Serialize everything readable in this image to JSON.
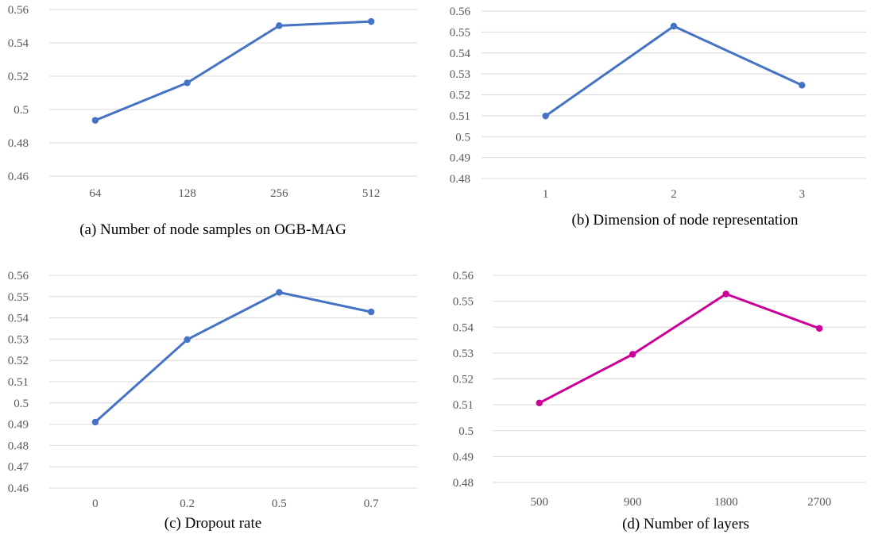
{
  "chart_data": [
    {
      "type": "line",
      "title": "(a) Number of node samples on OGB-MAG",
      "categories": [
        "64",
        "128",
        "256",
        "512"
      ],
      "series": [
        {
          "name": "",
          "values": [
            0.4935,
            0.516,
            0.5503,
            0.5528
          ]
        }
      ],
      "yticks": [
        "0.46",
        "0.48",
        "0.5",
        "0.52",
        "0.54",
        "0.56"
      ],
      "ylim": [
        0.46,
        0.56
      ],
      "xlabel": "",
      "ylabel": "",
      "color": "#4472c4"
    },
    {
      "type": "line",
      "title": "(b) Dimension of node representation",
      "categories": [
        "1",
        "2",
        "3"
      ],
      "series": [
        {
          "name": "",
          "values": [
            0.5099,
            0.5528,
            0.5246
          ]
        }
      ],
      "yticks": [
        "0.48",
        "0.49",
        "0.5",
        "0.51",
        "0.52",
        "0.53",
        "0.54",
        "0.55",
        "0.56"
      ],
      "ylim": [
        0.48,
        0.56
      ],
      "xlabel": "",
      "ylabel": "",
      "color": "#4472c4"
    },
    {
      "type": "line",
      "title": "(c) Dropout rate",
      "categories": [
        "0",
        "0.2",
        "0.5",
        "0.7"
      ],
      "series": [
        {
          "name": "",
          "values": [
            0.491,
            0.5298,
            0.552,
            0.5428
          ]
        }
      ],
      "yticks": [
        "0.46",
        "0.47",
        "0.48",
        "0.49",
        "0.5",
        "0.51",
        "0.52",
        "0.53",
        "0.54",
        "0.55",
        "0.56"
      ],
      "ylim": [
        0.46,
        0.56
      ],
      "xlabel": "",
      "ylabel": "",
      "color": "#4472c4"
    },
    {
      "type": "line",
      "title": "(d) Number of layers",
      "categories": [
        "500",
        "900",
        "1800",
        "2700"
      ],
      "series": [
        {
          "name": "",
          "values": [
            0.5107,
            0.5295,
            0.5528,
            0.5395
          ]
        }
      ],
      "yticks": [
        "0.48",
        "0.49",
        "0.5",
        "0.51",
        "0.52",
        "0.53",
        "0.54",
        "0.55",
        "0.56"
      ],
      "ylim": [
        0.48,
        0.56
      ],
      "xlabel": "",
      "ylabel": "",
      "color": "#cc0099"
    }
  ]
}
